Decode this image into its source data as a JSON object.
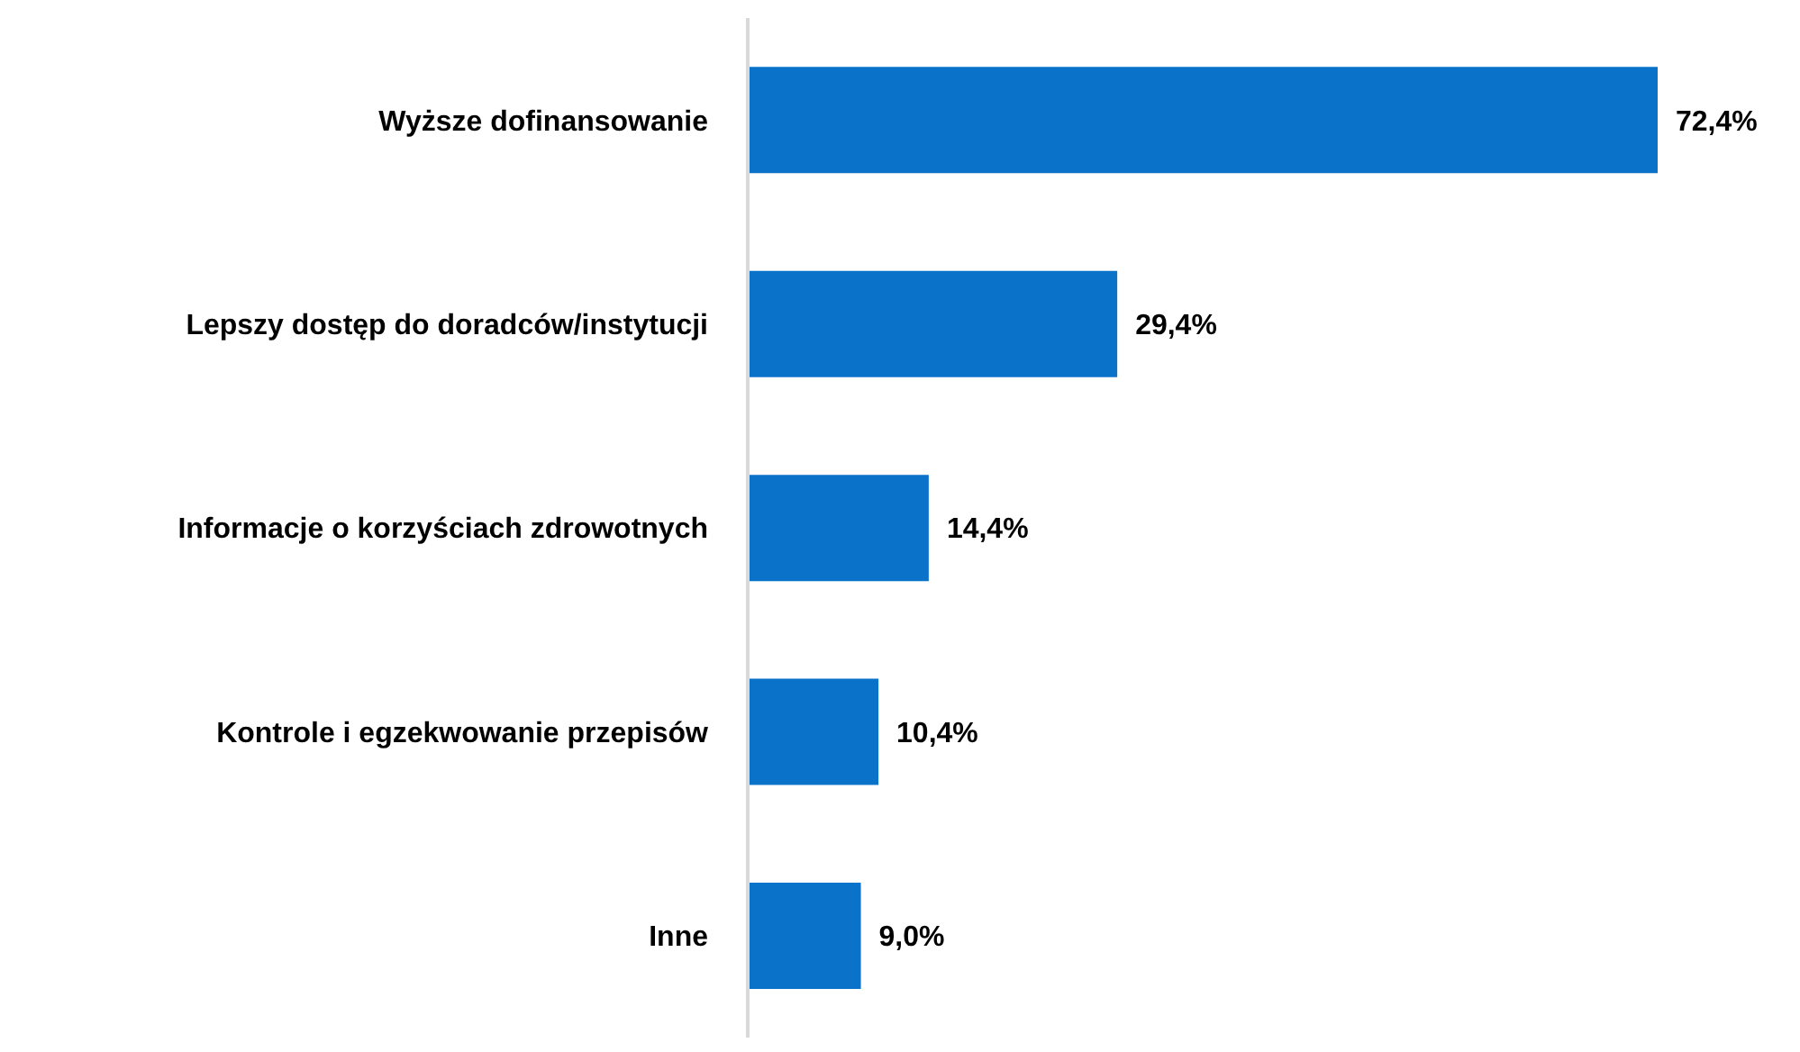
{
  "chart_data": {
    "type": "bar",
    "orientation": "horizontal",
    "categories": [
      "Wyższe dofinansowanie",
      "Lepszy dostęp do doradców/instytucji",
      "Informacje o korzyściach zdrowotnych",
      "Kontrole i egzekwowanie przepisów",
      "Inne"
    ],
    "values": [
      72.4,
      29.4,
      14.4,
      10.4,
      9.0
    ],
    "value_labels": [
      "72,4%",
      "29,4%",
      "14,4%",
      "10,4%",
      "9,0%"
    ],
    "color": "#0a72c8",
    "tick_labels": "y"
  }
}
